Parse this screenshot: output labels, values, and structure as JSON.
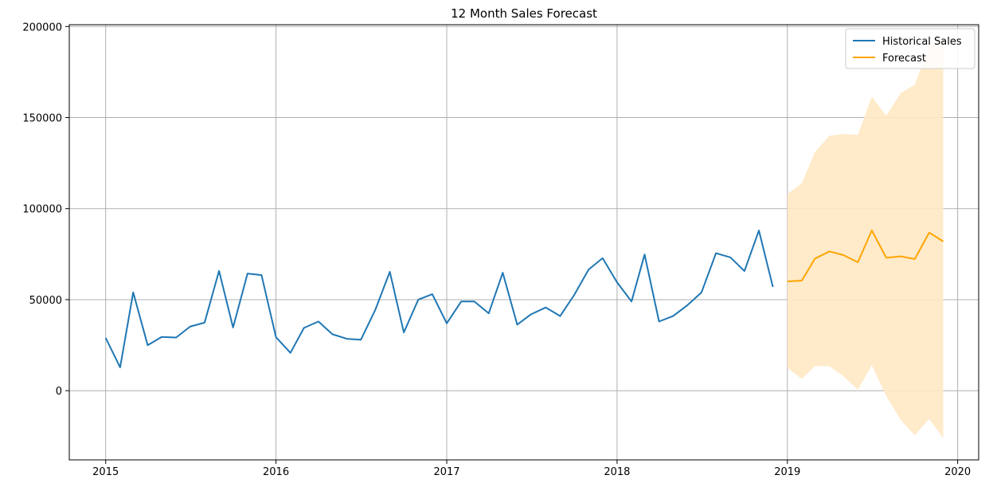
{
  "chart_data": {
    "type": "line",
    "title": "12 Month Sales Forecast",
    "xlabel": "",
    "ylabel": "",
    "x_axis": {
      "type": "date",
      "range": [
        "2014-10-15",
        "2020-02-15"
      ],
      "ticks": [
        "2015",
        "2016",
        "2017",
        "2018",
        "2019",
        "2020"
      ]
    },
    "y_axis": {
      "range": [
        -38000,
        201000
      ],
      "ticks": [
        "0",
        "50000",
        "100000",
        "150000",
        "200000"
      ]
    },
    "grid": true,
    "legend": {
      "placement": "upper-right",
      "entries": [
        "Historical Sales",
        "Forecast"
      ]
    },
    "colors": {
      "historical": "#1f77b4",
      "forecast": "#ffa500",
      "interval_fill": "#ffe8c4"
    },
    "series": [
      {
        "name": "Historical Sales",
        "x": [
          "2015-01-01",
          "2015-02-01",
          "2015-03-01",
          "2015-04-01",
          "2015-05-01",
          "2015-06-01",
          "2015-07-01",
          "2015-08-01",
          "2015-09-01",
          "2015-10-01",
          "2015-11-01",
          "2015-12-01",
          "2016-01-01",
          "2016-02-01",
          "2016-03-01",
          "2016-04-01",
          "2016-05-01",
          "2016-06-01",
          "2016-07-01",
          "2016-08-01",
          "2016-09-01",
          "2016-10-01",
          "2016-11-01",
          "2016-12-01",
          "2017-01-01",
          "2017-02-01",
          "2017-03-01",
          "2017-04-01",
          "2017-05-01",
          "2017-06-01",
          "2017-07-01",
          "2017-08-01",
          "2017-09-01",
          "2017-10-01",
          "2017-11-01",
          "2017-12-01",
          "2018-01-01",
          "2018-02-01",
          "2018-03-01",
          "2018-04-01",
          "2018-05-01",
          "2018-06-01",
          "2018-07-01",
          "2018-08-01",
          "2018-09-01",
          "2018-10-01",
          "2018-11-01",
          "2018-12-01"
        ],
        "values": [
          29000,
          12800,
          54000,
          25000,
          29500,
          29200,
          35200,
          37400,
          65800,
          34700,
          64300,
          63500,
          29400,
          20800,
          34500,
          38000,
          31000,
          28500,
          28000,
          44500,
          65300,
          32000,
          50000,
          53000,
          37000,
          49000,
          49000,
          42500,
          64800,
          36300,
          42000,
          45700,
          41000,
          52500,
          66500,
          72800,
          59500,
          49000,
          74800,
          38000,
          41000,
          47000,
          54000,
          75500,
          73200,
          65700,
          88000,
          57000
        ]
      },
      {
        "name": "Forecast",
        "x": [
          "2019-01-01",
          "2019-02-01",
          "2019-03-01",
          "2019-04-01",
          "2019-05-01",
          "2019-06-01",
          "2019-07-01",
          "2019-08-01",
          "2019-09-01",
          "2019-10-01",
          "2019-11-01",
          "2019-12-01"
        ],
        "values": [
          60000,
          60500,
          72500,
          76500,
          74500,
          70500,
          88000,
          73000,
          73800,
          72300,
          86800,
          82000
        ],
        "lower": [
          12500,
          6500,
          13500,
          13500,
          8000,
          500,
          14000,
          -3000,
          -16000,
          -24500,
          -15500,
          -26000
        ],
        "upper": [
          108000,
          114000,
          131000,
          140000,
          141000,
          140500,
          161500,
          151000,
          163500,
          168000,
          189000,
          194000
        ]
      }
    ]
  }
}
